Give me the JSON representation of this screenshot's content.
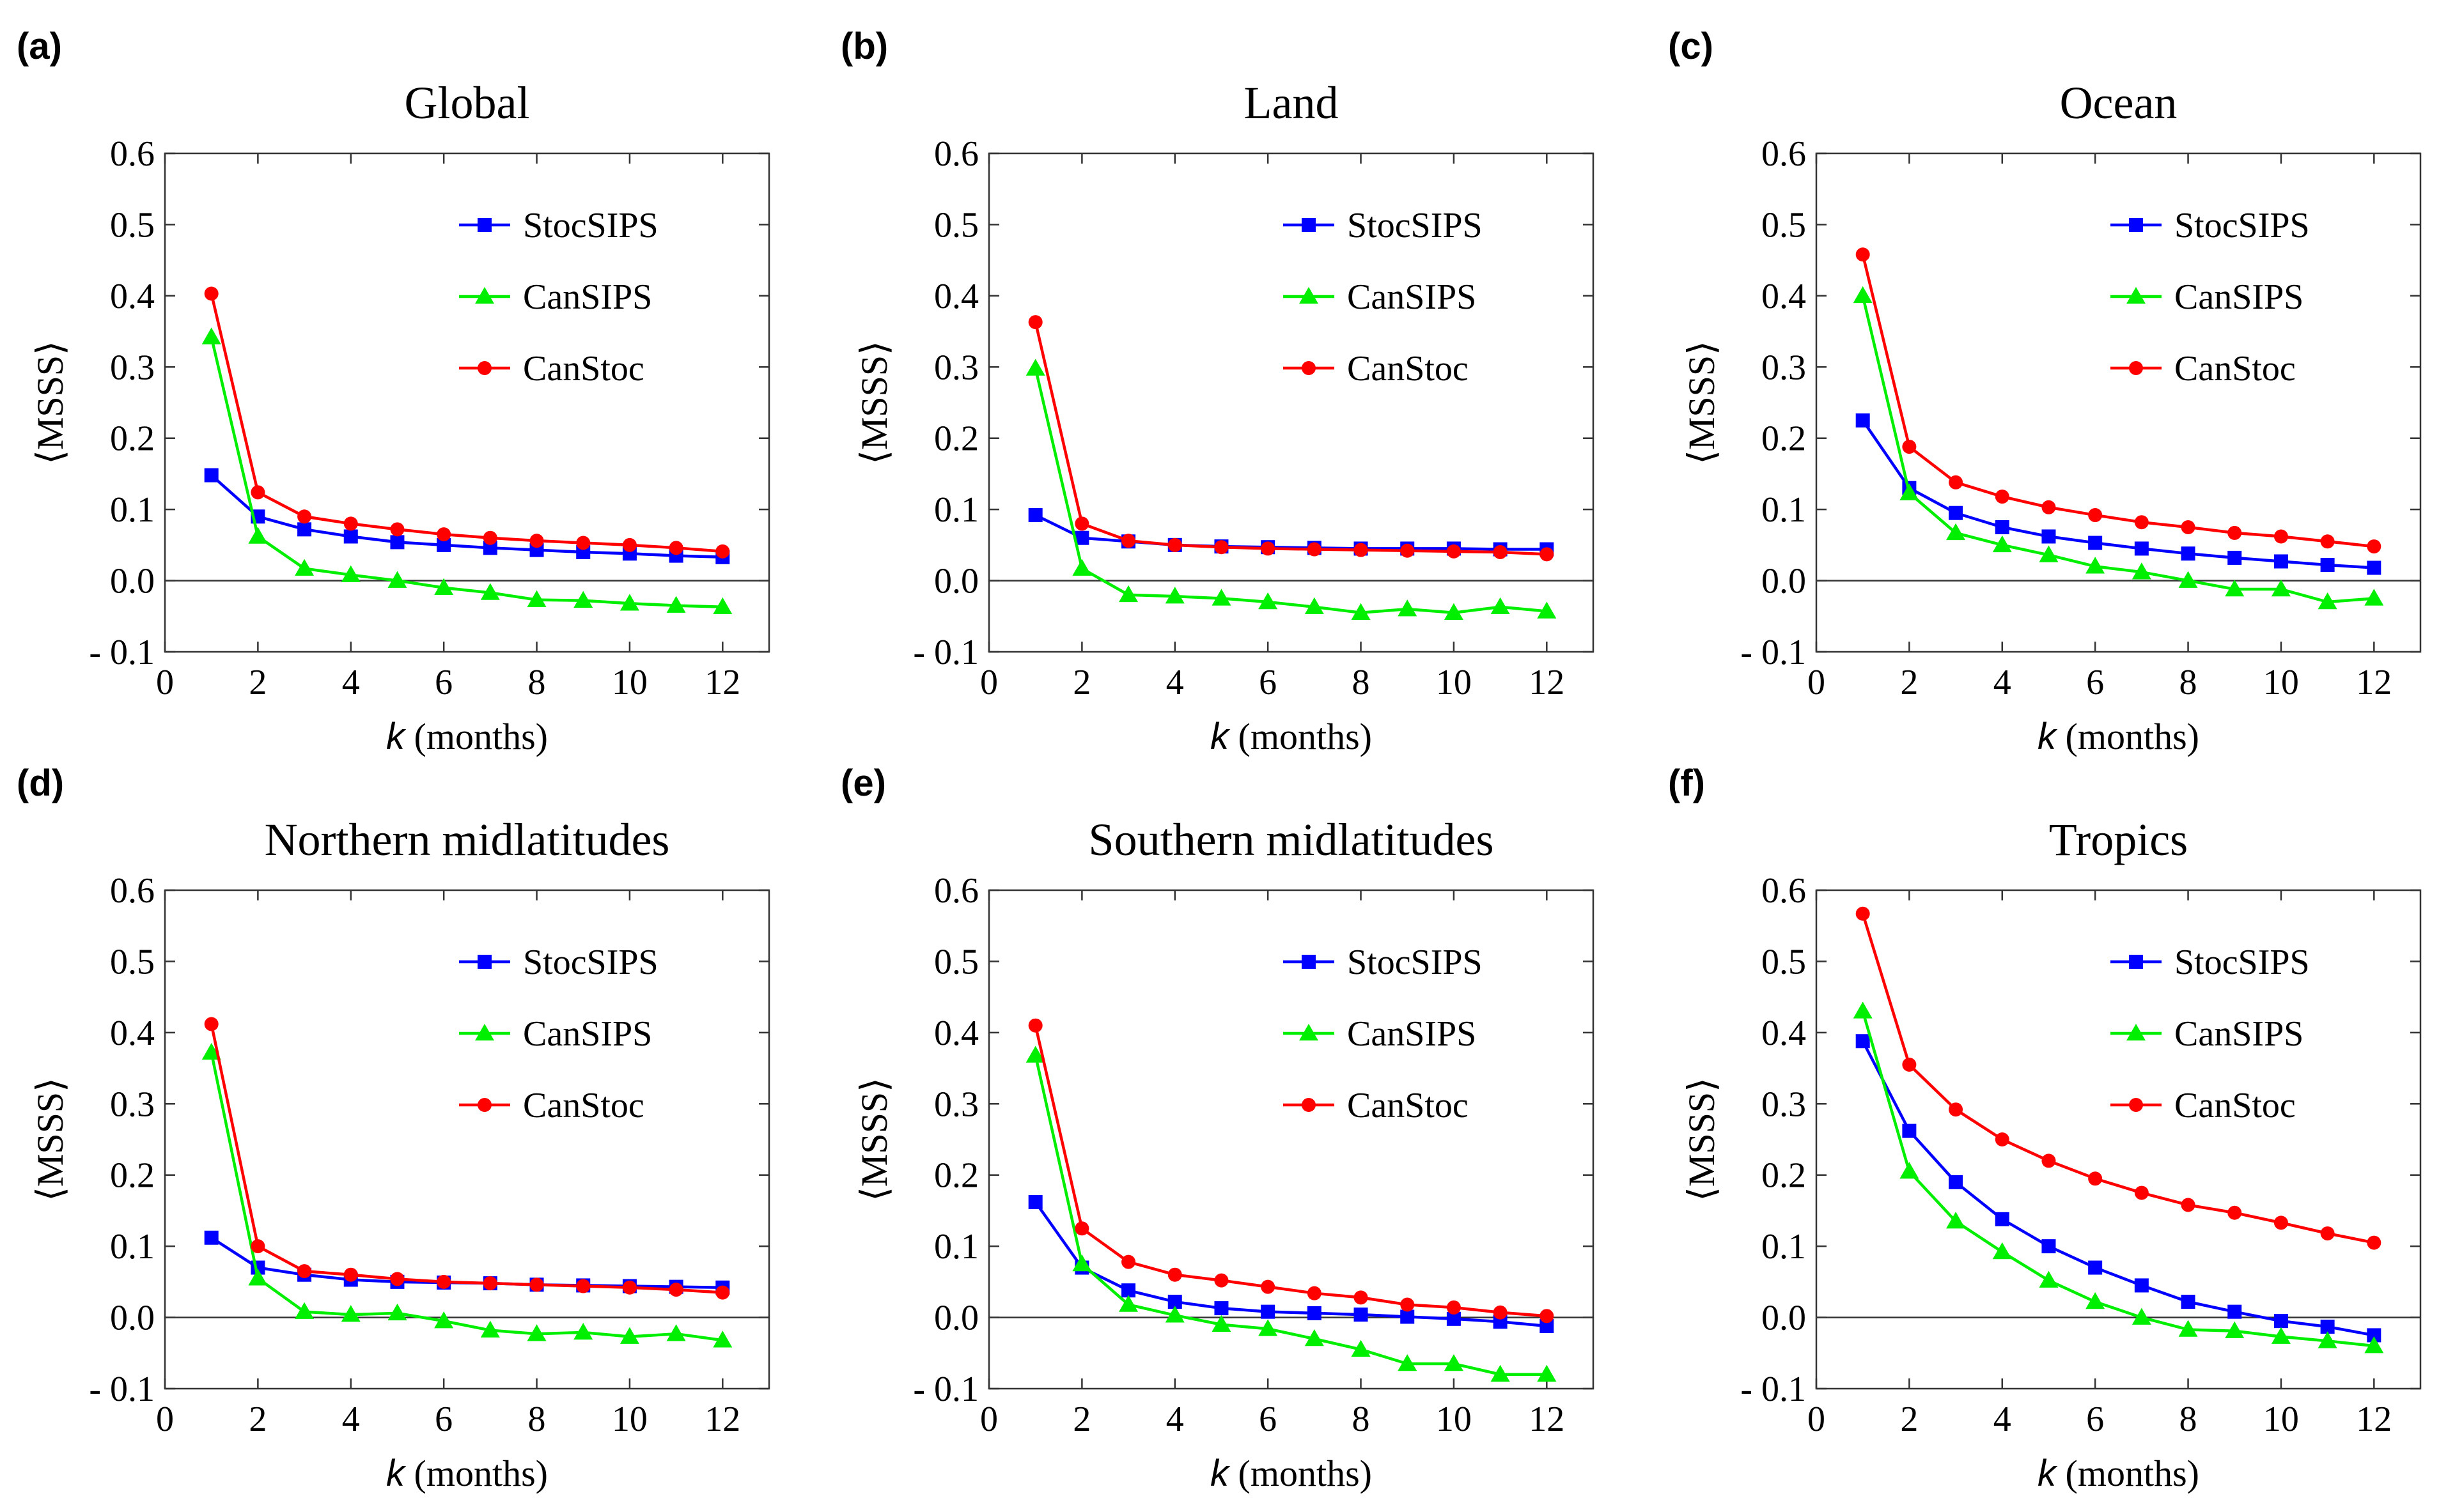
{
  "figure": {
    "colors": {
      "StocSIPS": "#0000ff",
      "CanSIPS": "#00ee00",
      "CanStoc": "#ff0000"
    },
    "ylabel": "⟨MSSS⟩",
    "xlabel_var": "k",
    "xlabel_rest": " (months)"
  },
  "chart_data": [
    {
      "type": "line",
      "letter": "(a)",
      "title": "Global",
      "x": [
        1,
        2,
        3,
        4,
        5,
        6,
        7,
        8,
        9,
        10,
        11,
        12
      ],
      "xlim": [
        0,
        13
      ],
      "ylim": [
        -0.1,
        0.6
      ],
      "xticks": [
        0,
        2,
        4,
        6,
        8,
        10,
        12
      ],
      "yticks": [
        -0.1,
        0.0,
        0.1,
        0.2,
        0.3,
        0.4,
        0.5,
        0.6
      ],
      "ytick_labels": [
        "- 0.1",
        "0.0",
        "0.1",
        "0.2",
        "0.3",
        "0.4",
        "0.5",
        "0.6"
      ],
      "series": [
        {
          "name": "StocSIPS",
          "marker": "square",
          "values": [
            0.148,
            0.09,
            0.072,
            0.062,
            0.054,
            0.05,
            0.046,
            0.043,
            0.04,
            0.038,
            0.035,
            0.033
          ]
        },
        {
          "name": "CanSIPS",
          "marker": "triangle",
          "values": [
            0.342,
            0.062,
            0.017,
            0.008,
            0.0,
            -0.01,
            -0.017,
            -0.027,
            -0.028,
            -0.032,
            -0.035,
            -0.037
          ]
        },
        {
          "name": "CanStoc",
          "marker": "circle",
          "values": [
            0.403,
            0.124,
            0.09,
            0.08,
            0.072,
            0.065,
            0.06,
            0.056,
            0.053,
            0.05,
            0.046,
            0.041
          ]
        }
      ]
    },
    {
      "type": "line",
      "letter": "(b)",
      "title": "Land",
      "x": [
        1,
        2,
        3,
        4,
        5,
        6,
        7,
        8,
        9,
        10,
        11,
        12
      ],
      "xlim": [
        0,
        13
      ],
      "ylim": [
        -0.1,
        0.6
      ],
      "xticks": [
        0,
        2,
        4,
        6,
        8,
        10,
        12
      ],
      "yticks": [
        -0.1,
        0.0,
        0.1,
        0.2,
        0.3,
        0.4,
        0.5,
        0.6
      ],
      "ytick_labels": [
        "- 0.1",
        "0.0",
        "0.1",
        "0.2",
        "0.3",
        "0.4",
        "0.5",
        "0.6"
      ],
      "series": [
        {
          "name": "StocSIPS",
          "marker": "square",
          "values": [
            0.092,
            0.06,
            0.055,
            0.05,
            0.048,
            0.047,
            0.046,
            0.045,
            0.045,
            0.045,
            0.044,
            0.044
          ]
        },
        {
          "name": "CanSIPS",
          "marker": "triangle",
          "values": [
            0.298,
            0.017,
            -0.02,
            -0.022,
            -0.025,
            -0.03,
            -0.037,
            -0.045,
            -0.04,
            -0.045,
            -0.037,
            -0.043
          ]
        },
        {
          "name": "CanStoc",
          "marker": "circle",
          "values": [
            0.363,
            0.08,
            0.056,
            0.05,
            0.047,
            0.045,
            0.044,
            0.043,
            0.042,
            0.041,
            0.04,
            0.037
          ]
        }
      ]
    },
    {
      "type": "line",
      "letter": "(c)",
      "title": "Ocean",
      "x": [
        1,
        2,
        3,
        4,
        5,
        6,
        7,
        8,
        9,
        10,
        11,
        12
      ],
      "xlim": [
        0,
        13
      ],
      "ylim": [
        -0.1,
        0.6
      ],
      "xticks": [
        0,
        2,
        4,
        6,
        8,
        10,
        12
      ],
      "yticks": [
        -0.1,
        0.0,
        0.1,
        0.2,
        0.3,
        0.4,
        0.5,
        0.6
      ],
      "ytick_labels": [
        "- 0.1",
        "0.0",
        "0.1",
        "0.2",
        "0.3",
        "0.4",
        "0.5",
        "0.6"
      ],
      "series": [
        {
          "name": "StocSIPS",
          "marker": "square",
          "values": [
            0.225,
            0.13,
            0.095,
            0.075,
            0.062,
            0.053,
            0.045,
            0.038,
            0.032,
            0.027,
            0.022,
            0.018
          ]
        },
        {
          "name": "CanSIPS",
          "marker": "triangle",
          "values": [
            0.4,
            0.123,
            0.067,
            0.05,
            0.036,
            0.02,
            0.012,
            0.0,
            -0.012,
            -0.012,
            -0.03,
            -0.025
          ]
        },
        {
          "name": "CanStoc",
          "marker": "circle",
          "values": [
            0.458,
            0.188,
            0.138,
            0.118,
            0.103,
            0.092,
            0.082,
            0.075,
            0.067,
            0.062,
            0.055,
            0.048
          ]
        }
      ]
    },
    {
      "type": "line",
      "letter": "(d)",
      "title": "Northern midlatitudes",
      "x": [
        1,
        2,
        3,
        4,
        5,
        6,
        7,
        8,
        9,
        10,
        11,
        12
      ],
      "xlim": [
        0,
        13
      ],
      "ylim": [
        -0.1,
        0.6
      ],
      "xticks": [
        0,
        2,
        4,
        6,
        8,
        10,
        12
      ],
      "yticks": [
        -0.1,
        0.0,
        0.1,
        0.2,
        0.3,
        0.4,
        0.5,
        0.6
      ],
      "ytick_labels": [
        "- 0.1",
        "0.0",
        "0.1",
        "0.2",
        "0.3",
        "0.4",
        "0.5",
        "0.6"
      ],
      "series": [
        {
          "name": "StocSIPS",
          "marker": "square",
          "values": [
            0.112,
            0.07,
            0.06,
            0.053,
            0.05,
            0.049,
            0.048,
            0.046,
            0.045,
            0.044,
            0.043,
            0.042
          ]
        },
        {
          "name": "CanSIPS",
          "marker": "triangle",
          "values": [
            0.372,
            0.055,
            0.008,
            0.004,
            0.006,
            -0.005,
            -0.018,
            -0.023,
            -0.021,
            -0.027,
            -0.023,
            -0.032
          ]
        },
        {
          "name": "CanStoc",
          "marker": "circle",
          "values": [
            0.412,
            0.1,
            0.065,
            0.06,
            0.054,
            0.05,
            0.048,
            0.046,
            0.044,
            0.042,
            0.039,
            0.035
          ]
        }
      ]
    },
    {
      "type": "line",
      "letter": "(e)",
      "title": "Southern midlatitudes",
      "x": [
        1,
        2,
        3,
        4,
        5,
        6,
        7,
        8,
        9,
        10,
        11,
        12
      ],
      "xlim": [
        0,
        13
      ],
      "ylim": [
        -0.1,
        0.6
      ],
      "xticks": [
        0,
        2,
        4,
        6,
        8,
        10,
        12
      ],
      "yticks": [
        -0.1,
        0.0,
        0.1,
        0.2,
        0.3,
        0.4,
        0.5,
        0.6
      ],
      "ytick_labels": [
        "- 0.1",
        "0.0",
        "0.1",
        "0.2",
        "0.3",
        "0.4",
        "0.5",
        "0.6"
      ],
      "series": [
        {
          "name": "StocSIPS",
          "marker": "square",
          "values": [
            0.162,
            0.07,
            0.038,
            0.022,
            0.013,
            0.008,
            0.006,
            0.004,
            0.001,
            -0.002,
            -0.006,
            -0.012
          ]
        },
        {
          "name": "CanSIPS",
          "marker": "triangle",
          "values": [
            0.368,
            0.075,
            0.018,
            0.003,
            -0.01,
            -0.016,
            -0.03,
            -0.045,
            -0.065,
            -0.065,
            -0.08,
            -0.08
          ]
        },
        {
          "name": "CanStoc",
          "marker": "circle",
          "values": [
            0.41,
            0.125,
            0.078,
            0.06,
            0.052,
            0.043,
            0.034,
            0.028,
            0.018,
            0.014,
            0.007,
            0.002
          ]
        }
      ]
    },
    {
      "type": "line",
      "letter": "(f)",
      "title": "Tropics",
      "x": [
        1,
        2,
        3,
        4,
        5,
        6,
        7,
        8,
        9,
        10,
        11,
        12
      ],
      "xlim": [
        0,
        13
      ],
      "ylim": [
        -0.1,
        0.6
      ],
      "xticks": [
        0,
        2,
        4,
        6,
        8,
        10,
        12
      ],
      "yticks": [
        -0.1,
        0.0,
        0.1,
        0.2,
        0.3,
        0.4,
        0.5,
        0.6
      ],
      "ytick_labels": [
        "- 0.1",
        "0.0",
        "0.1",
        "0.2",
        "0.3",
        "0.4",
        "0.5",
        "0.6"
      ],
      "series": [
        {
          "name": "StocSIPS",
          "marker": "square",
          "values": [
            0.388,
            0.262,
            0.19,
            0.138,
            0.1,
            0.07,
            0.045,
            0.022,
            0.008,
            -0.005,
            -0.013,
            -0.025
          ]
        },
        {
          "name": "CanSIPS",
          "marker": "triangle",
          "values": [
            0.43,
            0.205,
            0.135,
            0.092,
            0.052,
            0.022,
            0.0,
            -0.017,
            -0.019,
            -0.027,
            -0.033,
            -0.04
          ]
        },
        {
          "name": "CanStoc",
          "marker": "circle",
          "values": [
            0.567,
            0.355,
            0.292,
            0.25,
            0.22,
            0.195,
            0.175,
            0.158,
            0.147,
            0.133,
            0.118,
            0.105
          ]
        }
      ]
    }
  ]
}
